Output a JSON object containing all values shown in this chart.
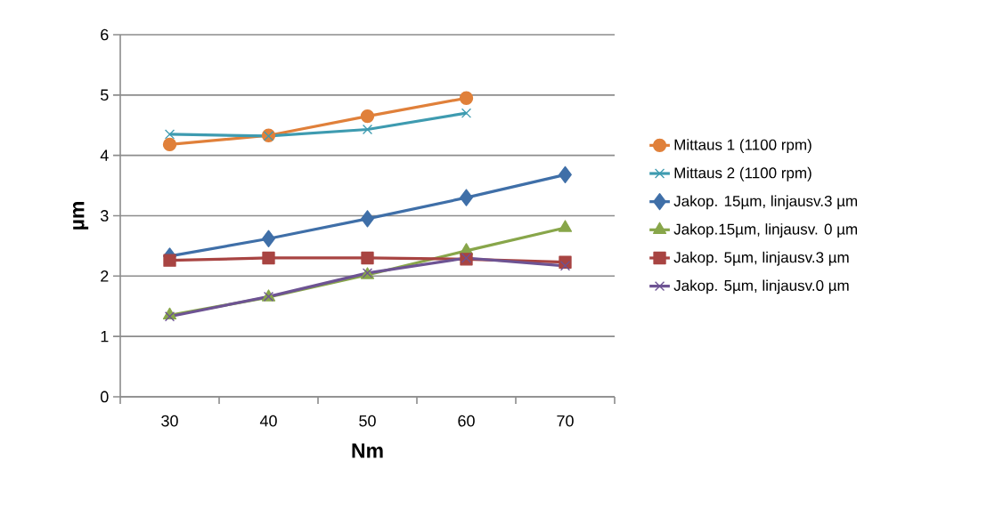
{
  "chart_data": {
    "type": "line",
    "xlabel": "Nm",
    "ylabel": "µm",
    "categories": [
      "30",
      "40",
      "50",
      "60",
      "70"
    ],
    "ylim": [
      0,
      6
    ],
    "yticks": [
      0,
      1,
      2,
      3,
      4,
      5,
      6
    ],
    "grid": "y",
    "legend": "right",
    "line_style": "solid",
    "series": [
      {
        "name": "Mittaus 1 (1100 rpm)",
        "color": "#e0803a",
        "marker": "circle",
        "values": [
          4.18,
          4.33,
          4.65,
          4.95,
          null
        ]
      },
      {
        "name": "Mittaus 2 (1100 rpm)",
        "color": "#3e9bb0",
        "marker": "cross",
        "values": [
          4.35,
          4.32,
          4.43,
          4.7,
          null
        ]
      },
      {
        "name": "Jakop. 15µm, linjausv.3 µm",
        "color": "#3f6fa8",
        "marker": "diamond",
        "values": [
          2.33,
          2.62,
          2.95,
          3.3,
          3.68
        ]
      },
      {
        "name": "Jakop.15µm, linjausv. 0 µm",
        "color": "#88a64a",
        "marker": "triangle",
        "values": [
          1.35,
          1.65,
          2.02,
          2.42,
          2.8
        ]
      },
      {
        "name": "Jakop. 5µm, linjausv.3 µm",
        "color": "#a84442",
        "marker": "square",
        "values": [
          2.26,
          2.3,
          2.3,
          2.28,
          2.23
        ]
      },
      {
        "name": "Jakop. 5µm, linjausv.0 µm",
        "color": "#6d5393",
        "marker": "cross",
        "values": [
          1.33,
          1.66,
          2.05,
          2.3,
          2.17
        ]
      }
    ]
  }
}
